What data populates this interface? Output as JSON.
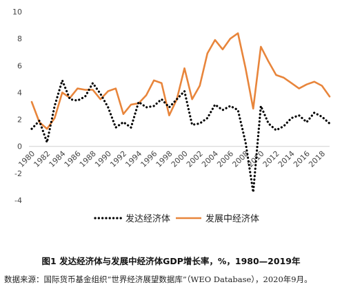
{
  "chart_data": {
    "type": "line",
    "title": "图1  发达经济体与发展中经济体GDP增长率，%，1980—2019年",
    "source": "数据来源：国际货币基金组织“世界经济展望数据库”（WEO Database），2020年9月。",
    "xlabel": "",
    "ylabel": "",
    "ylim": [
      -4,
      10
    ],
    "yticks": [
      -4,
      -2,
      0,
      2,
      4,
      6,
      8,
      10
    ],
    "grid": false,
    "legend_position": "bottom",
    "x": [
      1980,
      1981,
      1982,
      1983,
      1984,
      1985,
      1986,
      1987,
      1988,
      1989,
      1990,
      1991,
      1992,
      1993,
      1994,
      1995,
      1996,
      1997,
      1998,
      1999,
      2000,
      2001,
      2002,
      2003,
      2004,
      2005,
      2006,
      2007,
      2008,
      2009,
      2010,
      2011,
      2012,
      2013,
      2014,
      2015,
      2016,
      2017,
      2018,
      2019
    ],
    "xtick_labels": [
      "1980",
      "1982",
      "1984",
      "1986",
      "1988",
      "1990",
      "1992",
      "1994",
      "1996",
      "1998",
      "2000",
      "2002",
      "2004",
      "2006",
      "2008",
      "2010",
      "2012",
      "2014",
      "2016",
      "2018"
    ],
    "xtick_values": [
      1980,
      1982,
      1984,
      1986,
      1988,
      1990,
      1992,
      1994,
      1996,
      1998,
      2000,
      2002,
      2004,
      2006,
      2008,
      2010,
      2012,
      2014,
      2016,
      2018
    ],
    "series": [
      {
        "name": "发达经济体",
        "color": "#000000",
        "style": "dotted",
        "values": [
          1.3,
          1.9,
          0.3,
          3.0,
          4.9,
          3.5,
          3.4,
          3.7,
          4.7,
          3.9,
          2.9,
          1.4,
          1.8,
          1.4,
          3.3,
          2.9,
          3.0,
          3.5,
          2.9,
          3.5,
          4.1,
          1.6,
          1.7,
          2.1,
          3.1,
          2.7,
          3.0,
          2.7,
          0.3,
          -3.4,
          3.0,
          1.7,
          1.2,
          1.5,
          2.1,
          2.3,
          1.8,
          2.5,
          2.2,
          1.7
        ]
      },
      {
        "name": "发展中经济体",
        "color": "#e8853b",
        "style": "solid",
        "values": [
          3.3,
          1.8,
          1.3,
          2.1,
          4.0,
          3.6,
          4.3,
          4.2,
          4.2,
          3.5,
          4.1,
          4.3,
          2.4,
          3.1,
          3.2,
          3.8,
          4.9,
          4.7,
          2.3,
          3.5,
          5.8,
          3.5,
          4.5,
          6.9,
          7.9,
          7.2,
          8.0,
          8.4,
          5.8,
          2.8,
          7.4,
          6.3,
          5.3,
          5.1,
          4.7,
          4.3,
          4.6,
          4.8,
          4.5,
          3.7
        ]
      }
    ]
  }
}
